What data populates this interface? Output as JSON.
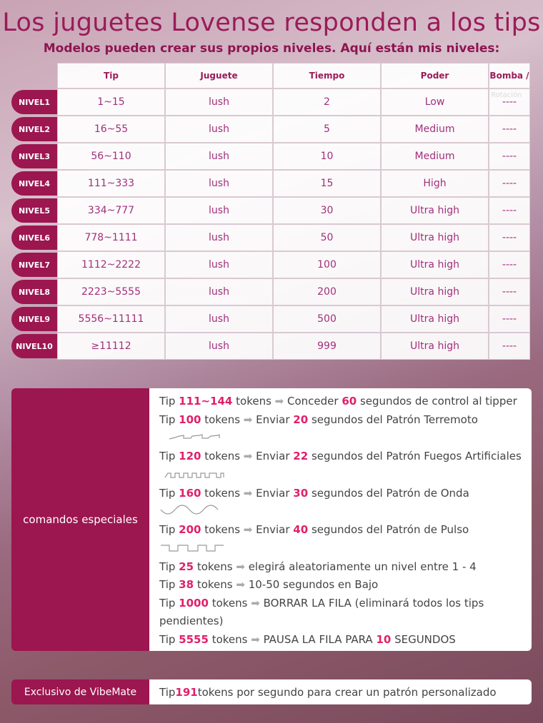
{
  "title": "Los juguetes Lovense responden a los tips",
  "subtitle": "Modelos pueden crear sus propios niveles. Aquí están mis niveles:",
  "table": {
    "headers": [
      "Tip",
      "Juguete",
      "Tiempo",
      "Poder",
      "Bomba /"
    ],
    "ghost_header": "Rotación",
    "rows": [
      {
        "level": "NIVEL1",
        "tip": "1~15",
        "toy": "lush",
        "time": "2",
        "power": "Low",
        "pump": "----"
      },
      {
        "level": "NIVEL2",
        "tip": "16~55",
        "toy": "lush",
        "time": "5",
        "power": "Medium",
        "pump": "----"
      },
      {
        "level": "NIVEL3",
        "tip": "56~110",
        "toy": "lush",
        "time": "10",
        "power": "Medium",
        "pump": "----"
      },
      {
        "level": "NIVEL4",
        "tip": "111~333",
        "toy": "lush",
        "time": "15",
        "power": "High",
        "pump": "----"
      },
      {
        "level": "NIVEL5",
        "tip": "334~777",
        "toy": "lush",
        "time": "30",
        "power": "Ultra high",
        "pump": "----"
      },
      {
        "level": "NIVEL6",
        "tip": "778~1111",
        "toy": "lush",
        "time": "50",
        "power": "Ultra high",
        "pump": "----"
      },
      {
        "level": "NIVEL7",
        "tip": "1112~2222",
        "toy": "lush",
        "time": "100",
        "power": "Ultra high",
        "pump": "----"
      },
      {
        "level": "NIVEL8",
        "tip": "2223~5555",
        "toy": "lush",
        "time": "200",
        "power": "Ultra high",
        "pump": "----"
      },
      {
        "level": "NIVEL9",
        "tip": "5556~11111",
        "toy": "lush",
        "time": "500",
        "power": "Ultra high",
        "pump": "----"
      },
      {
        "level": "NIVEL10",
        "tip": "≥11112",
        "toy": "lush",
        "time": "999",
        "power": "Ultra high",
        "pump": "----"
      }
    ]
  },
  "commands": {
    "label": "comandos especiales",
    "lines": [
      {
        "parts": [
          [
            "Tip ",
            0
          ],
          [
            "111~144",
            1
          ],
          [
            " tokens ",
            0
          ],
          [
            "➡",
            2
          ],
          [
            " Conceder ",
            0
          ],
          [
            "60",
            1
          ],
          [
            " segundos de control al tipper",
            0
          ]
        ]
      },
      {
        "parts": [
          [
            "Tip ",
            0
          ],
          [
            "100",
            1
          ],
          [
            " tokens ",
            0
          ],
          [
            "➡",
            2
          ],
          [
            " Enviar ",
            0
          ],
          [
            "20",
            1
          ],
          [
            " segundos del Patrón Terremoto",
            0
          ]
        ],
        "pattern": "earthquake"
      },
      {
        "parts": [
          [
            "Tip ",
            0
          ],
          [
            "120",
            1
          ],
          [
            " tokens ",
            0
          ],
          [
            "➡",
            2
          ],
          [
            " Enviar ",
            0
          ],
          [
            "22",
            1
          ],
          [
            " segundos del Patrón Fuegos Artificiales",
            0
          ]
        ],
        "pattern": "fireworks"
      },
      {
        "parts": [
          [
            "Tip ",
            0
          ],
          [
            "160",
            1
          ],
          [
            " tokens ",
            0
          ],
          [
            "➡",
            2
          ],
          [
            " Enviar ",
            0
          ],
          [
            "30",
            1
          ],
          [
            " segundos del Patrón de Onda",
            0
          ]
        ],
        "pattern": "wave"
      },
      {
        "parts": [
          [
            "Tip ",
            0
          ],
          [
            "200",
            1
          ],
          [
            " tokens ",
            0
          ],
          [
            "➡",
            2
          ],
          [
            " Enviar ",
            0
          ],
          [
            "40",
            1
          ],
          [
            " segundos del Patrón de Pulso",
            0
          ]
        ],
        "pattern": "pulse"
      },
      {
        "parts": [
          [
            "Tip ",
            0
          ],
          [
            "25",
            1
          ],
          [
            " tokens ",
            0
          ],
          [
            "➡",
            2
          ],
          [
            " elegirá aleatoriamente un nivel entre 1 - 4",
            0
          ]
        ]
      },
      {
        "parts": [
          [
            "Tip ",
            0
          ],
          [
            "38",
            1
          ],
          [
            " tokens ",
            0
          ],
          [
            "➡",
            2
          ],
          [
            " 10-50 segundos en Bajo",
            0
          ]
        ]
      },
      {
        "parts": [
          [
            "Tip ",
            0
          ],
          [
            "1000",
            1
          ],
          [
            " tokens ",
            0
          ],
          [
            "➡",
            2
          ],
          [
            " BORRAR LA FILA (eliminará todos los tips pendientes)",
            0
          ]
        ]
      },
      {
        "parts": [
          [
            "Tip ",
            0
          ],
          [
            "5555",
            1
          ],
          [
            " tokens ",
            0
          ],
          [
            "➡",
            2
          ],
          [
            " PAUSA LA FILA PARA ",
            0
          ],
          [
            "10",
            1
          ],
          [
            " SEGUNDOS",
            0
          ]
        ]
      }
    ]
  },
  "exclusive": {
    "label": "Exclusivo de VibeMate",
    "parts": [
      [
        "Tip ",
        0
      ],
      [
        "191",
        1
      ],
      [
        " tokens por segundo para crear un patrón personalizado",
        0
      ]
    ]
  },
  "colors": {
    "accent": "#9c1650",
    "highlight": "#e0206a"
  }
}
